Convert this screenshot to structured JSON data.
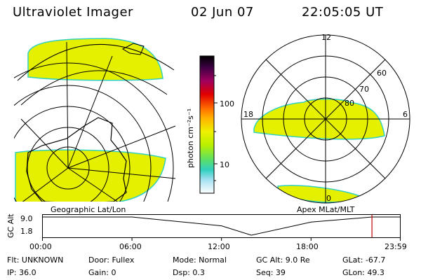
{
  "header": {
    "title": "Ultraviolet Imager",
    "date": "02 Jun 07",
    "time": "22:05:05 UT"
  },
  "colorbar": {
    "unit_label": "photon cm⁻²s⁻¹",
    "ticks": [
      "100",
      "10"
    ]
  },
  "panels": {
    "left_label": "Geographic Lat/Lon",
    "right_label": "Apex  MLat/MLT"
  },
  "polar_plot": {
    "mlt_labels": [
      "12",
      "18",
      "6",
      "0"
    ],
    "lat_labels": [
      "60",
      "70",
      "80"
    ]
  },
  "altitude_track": {
    "axis_title": "GC Alt",
    "y_ticks": [
      "9.0",
      "1.8"
    ],
    "x_ticks": [
      "00:00",
      "06:00",
      "12:00",
      "18:00",
      "23:59"
    ]
  },
  "info": {
    "flt": "Flt: UNKNOWN",
    "door": "Door: Fullex",
    "mode": "Mode: Normal",
    "gc_alt": "GC Alt: 9.0 Re",
    "glat": "GLat: -67.7",
    "ip": "IP: 36.0",
    "gain": "Gain:  0",
    "dsp": "Dsp:     0.3",
    "seq": "Seq: 39",
    "glon": "GLon:  49.3"
  },
  "colors": {
    "aurora_fill": "#e5ef00",
    "aurora_edge": "#33d0c0",
    "marker": "#c00000"
  },
  "chart_data": [
    {
      "type": "line",
      "title": "",
      "xlabel": "",
      "ylabel": "GC Alt",
      "x": [
        "00:00",
        "06:00",
        "12:00",
        "14:00",
        "18:00",
        "22:05",
        "23:59"
      ],
      "y": [
        9.0,
        9.0,
        5.5,
        1.8,
        7.0,
        9.0,
        9.0
      ],
      "ylim": [
        1.8,
        9.0
      ],
      "current_time": "22:05"
    },
    {
      "type": "heatmap",
      "title": "",
      "colorbar_label": "photon cm-2s-1",
      "colorbar_scale": "log",
      "colorbar_ticks": [
        10,
        100
      ]
    }
  ]
}
